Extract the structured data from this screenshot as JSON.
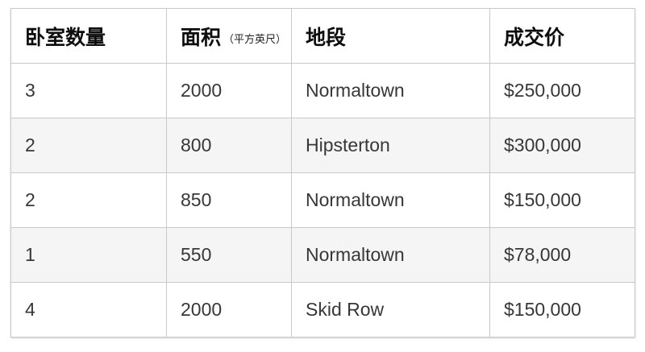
{
  "chart_data": {
    "type": "table",
    "columns": [
      {
        "label": "卧室数量",
        "unit_note": ""
      },
      {
        "label": "面积",
        "unit_note": "（平方英尺）"
      },
      {
        "label": "地段",
        "unit_note": ""
      },
      {
        "label": "成交价",
        "unit_note": ""
      }
    ],
    "rows": [
      [
        "3",
        "2000",
        "Normaltown",
        "$250,000"
      ],
      [
        "2",
        "800",
        "Hipsterton",
        "$300,000"
      ],
      [
        "2",
        "850",
        "Normaltown",
        "$150,000"
      ],
      [
        "1",
        "550",
        "Normaltown",
        "$78,000"
      ],
      [
        "4",
        "2000",
        "Skid Row",
        "$150,000"
      ]
    ],
    "layout": {
      "striped": true,
      "stripe_rows": [
        2,
        4
      ]
    }
  },
  "colors": {
    "background": "#ffffff",
    "border": "#c9c9c9",
    "stripe_row_bg": "#f5f5f5",
    "header_text": "#0d0d0d",
    "body_text": "#373737"
  }
}
